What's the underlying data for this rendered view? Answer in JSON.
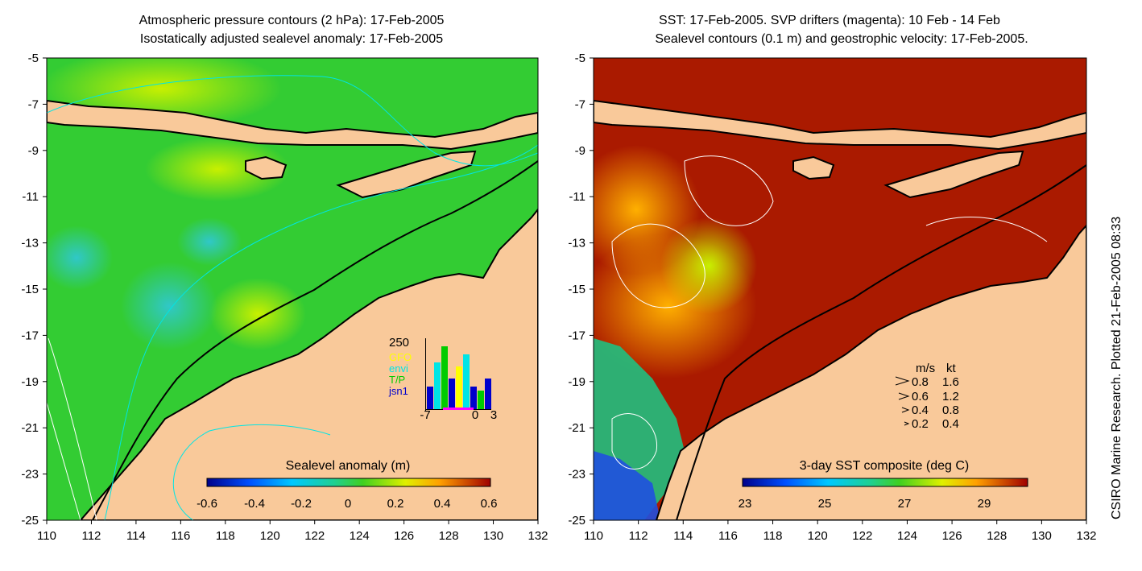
{
  "left_panel": {
    "title_line1": "Atmospheric pressure contours (2 hPa): 17-Feb-2005",
    "title_line2": "Isostatically adjusted sealevel anomaly: 17-Feb-2005",
    "colorbar_label": "Sealevel anomaly (m)",
    "colorbar_ticks": [
      "-0.6",
      "-0.4",
      "-0.2",
      "0",
      "0.2",
      "0.4",
      "0.6"
    ],
    "inset": {
      "ymax_label": "250",
      "legend": [
        {
          "label": "GFO",
          "color": "#ffff00"
        },
        {
          "label": "envi",
          "color": "#00e5e5"
        },
        {
          "label": "T/P",
          "color": "#00cc00"
        },
        {
          "label": "jsn1",
          "color": "#0000cc"
        }
      ],
      "x_ticks": [
        "-7",
        "0",
        "3"
      ]
    }
  },
  "right_panel": {
    "title_line1": "SST: 17-Feb-2005. SVP drifters (magenta): 10 Feb - 14 Feb",
    "title_line2": "Sealevel contours (0.1 m) and geostrophic velocity: 17-Feb-2005.",
    "colorbar_label": "3-day SST composite (deg C)",
    "colorbar_ticks": [
      "23",
      "25",
      "27",
      "29"
    ],
    "velocity_legend": {
      "header_ms": "m/s",
      "header_kt": "kt",
      "rows": [
        {
          "ms": "0.8",
          "kt": "1.6"
        },
        {
          "ms": "0.6",
          "kt": "1.2"
        },
        {
          "ms": "0.4",
          "kt": "0.8"
        },
        {
          "ms": "0.2",
          "kt": "0.4"
        }
      ]
    }
  },
  "axes": {
    "lat_ticks": [
      "-5",
      "-7",
      "-9",
      "-11",
      "-13",
      "-15",
      "-17",
      "-19",
      "-21",
      "-23",
      "-25"
    ],
    "lon_ticks": [
      "110",
      "112",
      "114",
      "116",
      "118",
      "120",
      "122",
      "124",
      "126",
      "128",
      "130",
      "132"
    ]
  },
  "side_credit": "CSIRO Marine Research. Plotted 21-Feb-2005 08:33",
  "colors": {
    "land": "#f9c99a",
    "ocean_left": "#33cc33",
    "ocean_right": "#aa1a00"
  }
}
